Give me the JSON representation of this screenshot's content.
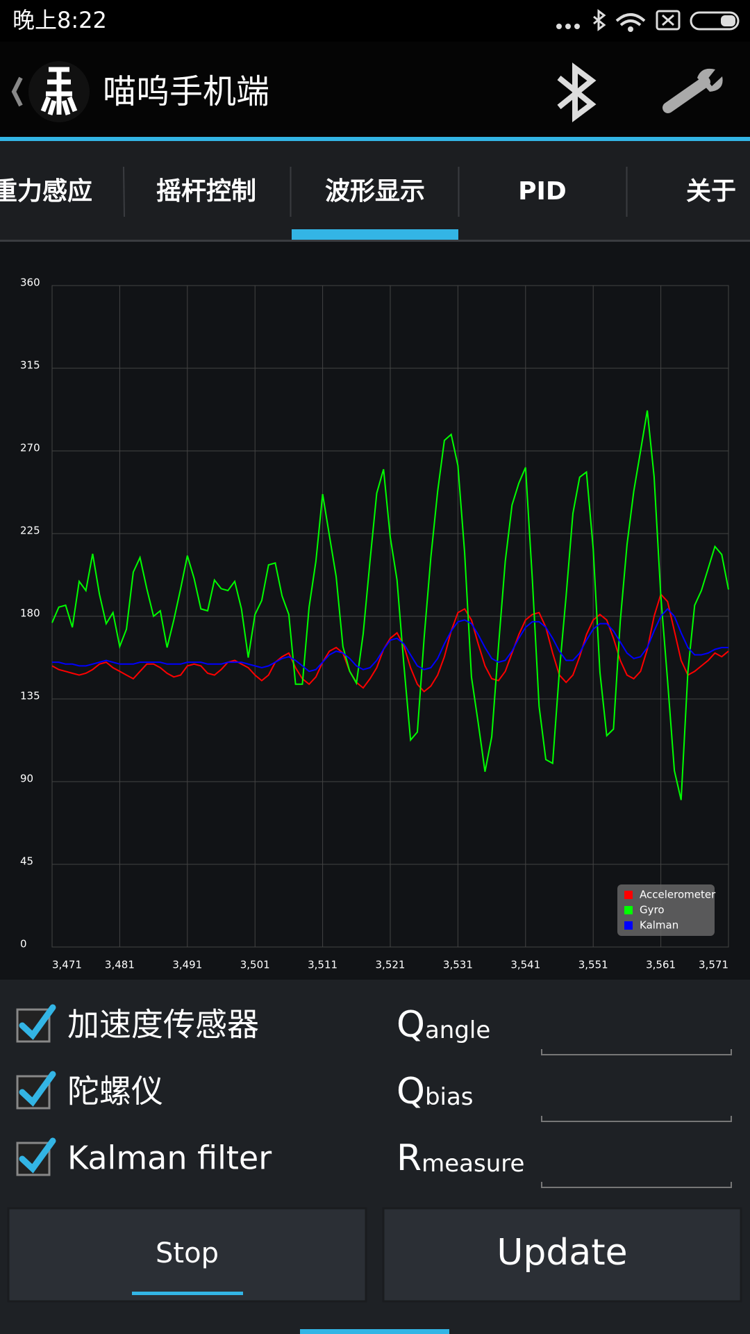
{
  "status_bar": {
    "time": "晚上8:22"
  },
  "app_bar": {
    "title": "喵呜手机端"
  },
  "tabs": {
    "items": [
      "重力感应",
      "摇杆控制",
      "波形显示",
      "PID",
      "关于"
    ],
    "selected": 2
  },
  "chart_data": {
    "type": "line",
    "x": [
      3471,
      3472,
      3473,
      3474,
      3475,
      3476,
      3477,
      3478,
      3479,
      3480,
      3481,
      3482,
      3483,
      3484,
      3485,
      3486,
      3487,
      3488,
      3489,
      3490,
      3491,
      3492,
      3493,
      3494,
      3495,
      3496,
      3497,
      3498,
      3499,
      3500,
      3501,
      3502,
      3503,
      3504,
      3505,
      3506,
      3507,
      3508,
      3509,
      3510,
      3511,
      3512,
      3513,
      3514,
      3515,
      3516,
      3517,
      3518,
      3519,
      3520,
      3521,
      3522,
      3523,
      3524,
      3525,
      3526,
      3527,
      3528,
      3529,
      3530,
      3531,
      3532,
      3533,
      3534,
      3535,
      3536,
      3537,
      3538,
      3539,
      3540,
      3541,
      3542,
      3543,
      3544,
      3545,
      3546,
      3547,
      3548,
      3549,
      3550,
      3551,
      3552,
      3553,
      3554,
      3555,
      3556,
      3557,
      3558,
      3559,
      3560,
      3561,
      3562,
      3563,
      3564,
      3565,
      3566,
      3567,
      3568,
      3569,
      3570,
      3571
    ],
    "series": [
      {
        "name": "Accelerometer",
        "color": "#ff0000",
        "values": [
          153,
          151,
          150,
          149,
          148,
          149,
          151,
          154,
          155,
          152,
          150,
          148,
          146,
          150,
          154,
          154,
          152,
          149,
          147,
          148,
          153,
          154,
          153,
          149,
          148,
          151,
          155,
          156,
          154,
          152,
          148,
          145,
          148,
          155,
          158,
          160,
          152,
          146,
          143,
          147,
          155,
          161,
          163,
          160,
          150,
          144,
          141,
          146,
          152,
          162,
          168,
          171,
          164,
          152,
          143,
          139,
          142,
          148,
          158,
          172,
          182,
          184,
          178,
          165,
          153,
          146,
          145,
          150,
          160,
          170,
          178,
          181,
          182,
          174,
          160,
          148,
          144,
          148,
          158,
          170,
          178,
          181,
          178,
          168,
          156,
          148,
          146,
          150,
          162,
          180,
          192,
          188,
          172,
          156,
          148,
          150,
          153,
          156,
          160,
          158,
          161
        ]
      },
      {
        "name": "Gyro",
        "color": "#00ff00",
        "values": [
          176.5,
          185,
          186,
          174,
          199,
          194,
          214,
          192,
          176,
          182,
          163.5,
          173,
          204,
          212,
          195,
          180,
          183,
          163,
          178,
          195,
          213,
          200.6,
          184,
          183,
          199.7,
          195,
          194,
          199,
          184,
          157.5,
          181,
          188.6,
          208,
          209,
          191,
          181,
          143,
          143,
          185,
          210,
          246.5,
          224,
          201.5,
          163.5,
          150,
          143.6,
          170.5,
          210,
          247,
          260,
          223,
          199.7,
          154,
          112.6,
          117,
          168,
          212,
          248,
          275.7,
          279,
          262,
          214.5,
          147,
          122,
          95.4,
          114.4,
          163.5,
          210,
          240.5,
          252.5,
          261,
          200.6,
          131,
          102,
          100,
          150,
          191,
          236,
          255.7,
          258.5,
          216.8,
          149.6,
          115,
          118.6,
          177.4,
          219,
          248,
          270,
          292,
          256,
          191,
          145,
          96,
          80,
          150,
          186,
          194,
          206,
          218,
          213.6,
          194.6
        ]
      },
      {
        "name": "Kalman",
        "color": "#0000ff",
        "values": [
          155,
          155,
          154,
          154,
          153,
          153,
          154,
          155,
          156,
          155,
          154,
          154,
          154,
          155,
          155,
          155,
          155,
          154,
          154,
          154,
          155,
          155,
          155,
          154,
          154,
          154,
          155,
          155,
          155,
          154,
          153,
          152,
          153,
          155,
          157,
          158,
          156,
          153,
          150,
          151,
          155,
          159,
          161,
          160,
          157,
          153,
          151,
          152,
          156,
          162,
          167,
          168,
          165,
          159,
          153,
          151,
          152,
          157,
          165,
          172,
          177,
          178,
          176,
          170,
          163,
          157,
          155,
          156,
          161,
          168,
          174,
          177,
          177,
          174,
          168,
          161,
          156,
          156,
          160,
          167,
          173,
          176,
          176,
          172,
          166,
          160,
          157,
          158,
          163,
          172,
          180,
          184,
          180,
          171,
          163,
          159,
          159,
          160,
          162,
          163,
          163
        ]
      }
    ],
    "xlim": [
      3471,
      3571
    ],
    "xticks": [
      {
        "value": 3471,
        "label": "3,471"
      },
      {
        "value": 3481,
        "label": "3,481"
      },
      {
        "value": 3491,
        "label": "3,491"
      },
      {
        "value": 3501,
        "label": "3,501"
      },
      {
        "value": 3511,
        "label": "3,511"
      },
      {
        "value": 3521,
        "label": "3,521"
      },
      {
        "value": 3531,
        "label": "3,531"
      },
      {
        "value": 3541,
        "label": "3,541"
      },
      {
        "value": 3551,
        "label": "3,551"
      },
      {
        "value": 3561,
        "label": "3,561"
      },
      {
        "value": 3571,
        "label": "3,571"
      }
    ],
    "ylim": [
      0,
      360
    ],
    "yticks": [
      0,
      45,
      90,
      135,
      180,
      225,
      270,
      315,
      360
    ],
    "grid": true,
    "legend": "lower-right"
  },
  "checkboxes": [
    {
      "label": "加速度传感器",
      "checked": true
    },
    {
      "label": "陀螺仪",
      "checked": true
    },
    {
      "label": "Kalman filter",
      "checked": true
    }
  ],
  "params": [
    {
      "big": "Q",
      "small": "angle"
    },
    {
      "big": "Q",
      "small": "bias"
    },
    {
      "big": "R",
      "small": "measure"
    }
  ],
  "buttons": [
    "Stop",
    "Update"
  ]
}
